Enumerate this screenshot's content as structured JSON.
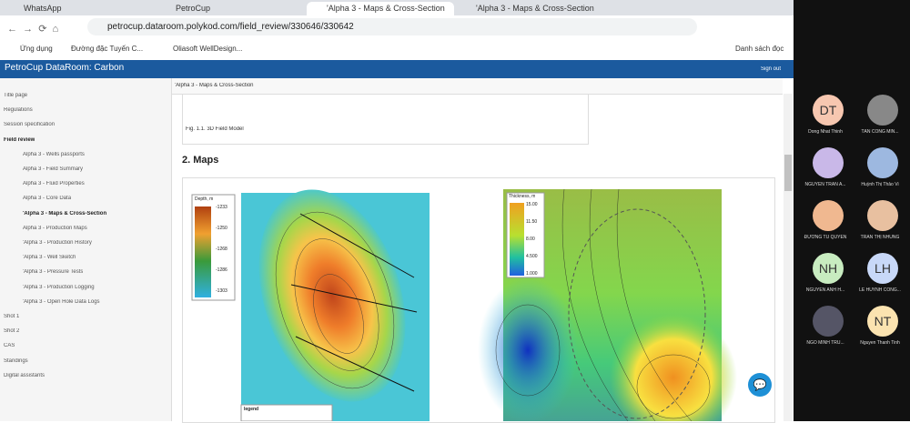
{
  "browser": {
    "tabs": [
      "WhatsApp",
      "PetroCup",
      "'Alpha 3 - Maps & Cross-Section",
      "'Alpha 3 - Maps & Cross-Section"
    ],
    "url": "petrocup.dataroom.polykod.com/field_review/330646/330642",
    "bookmarks": [
      "Ứng dụng",
      "Đường đặc Tuyến C...",
      "Oliasoft WellDesign..."
    ],
    "reading_list": "Danh sách đọc"
  },
  "app": {
    "title": "PetroCup DataRoom: Carbon",
    "sign_out": "Sign out"
  },
  "sidebar": {
    "items": [
      {
        "label": "Title page",
        "level": 0
      },
      {
        "label": "Regulations",
        "level": 0
      },
      {
        "label": "Session specification",
        "level": 0
      },
      {
        "label": "Field review",
        "level": 0,
        "bold": true
      },
      {
        "label": "Alpha 3 - Wells passports",
        "level": 1
      },
      {
        "label": "Alpha 3 - Field Summary",
        "level": 1
      },
      {
        "label": "Alpha 3 - Fluid Properties",
        "level": 1
      },
      {
        "label": "Alpha 3 - Core Data",
        "level": 1
      },
      {
        "label": "'Alpha 3 - Maps & Cross-Section",
        "level": 1,
        "bold": true
      },
      {
        "label": "Alpha 3 - Production Maps",
        "level": 1
      },
      {
        "label": "'Alpha 3 - Production History",
        "level": 1
      },
      {
        "label": "'Alpha 3 - Well Sketch",
        "level": 1
      },
      {
        "label": "'Alpha 3 - Pressure Tests",
        "level": 1
      },
      {
        "label": "'Alpha 3 - Production Logging",
        "level": 1
      },
      {
        "label": "'Alpha 3 - Open Hole Data Logs",
        "level": 1
      },
      {
        "label": "Shot 1",
        "level": 0
      },
      {
        "label": "Shot 2",
        "level": 0
      },
      {
        "label": "CAS",
        "level": 0
      },
      {
        "label": "Standings",
        "level": 0
      },
      {
        "label": "Digital assistants",
        "level": 0
      }
    ]
  },
  "content": {
    "breadcrumb": "'Alpha 3 - Maps & Cross-Section",
    "figure_caption": "Fig. 1.1. 3D Field Model",
    "section_heading": "2. Maps",
    "map_left": {
      "legend_title": "Depth, m",
      "legend_values": [
        "-1233",
        "-1250",
        "-1268",
        "-1286",
        "-1303"
      ],
      "legend_label": "legend"
    },
    "map_right": {
      "legend_title": "Thickness, m",
      "legend_values": [
        "15.00",
        "11.50",
        "8.00",
        "4.500",
        "1.000"
      ]
    }
  },
  "participants": [
    {
      "initials": "DT",
      "name": "Dong Nhat Thinh"
    },
    {
      "name": "TÂN CÔNG MIN..."
    },
    {
      "name": "NGUYỄN TRẦN A..."
    },
    {
      "name": "Huỳnh Thị Thảo Vi"
    },
    {
      "name": "ĐƯỜNG TÚ QUYÊN"
    },
    {
      "name": "TRẦN THỊ NHUNG"
    },
    {
      "initials": "NH",
      "name": "NGUYỄN ANH H..."
    },
    {
      "initials": "LH",
      "name": "LE HUYNH CONG..."
    },
    {
      "name": "NGÔ MINH TRU..."
    },
    {
      "initials": "NT",
      "name": "Nguyen Thanh Tinh"
    }
  ]
}
